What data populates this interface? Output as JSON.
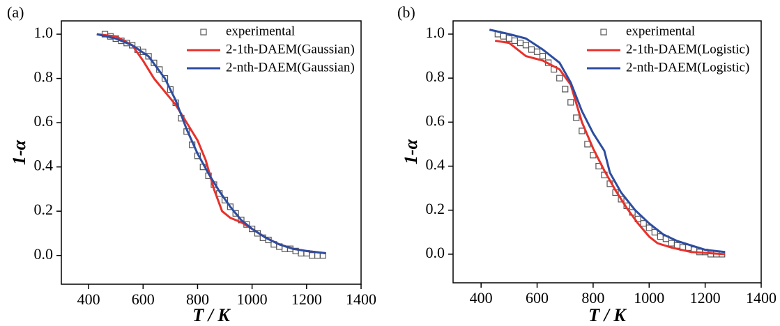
{
  "chart_data": [
    {
      "type": "line",
      "panel_label": "(a)",
      "x_label": "T / K",
      "y_label": "1-α",
      "xlim": [
        300,
        1400
      ],
      "xticks": [
        400,
        600,
        800,
        1000,
        1200,
        1400
      ],
      "ylim": [
        -0.13,
        1.06
      ],
      "yticks": [
        {
          "value": 0,
          "label": "0.0"
        },
        0.2,
        0.4,
        0.6,
        0.8,
        {
          "value": 1,
          "label": "1.0"
        }
      ],
      "legend": "upper right",
      "series": [
        {
          "name": "experimental",
          "color": "#555555",
          "style": "markers",
          "x": [
            460,
            480,
            500,
            520,
            540,
            560,
            580,
            600,
            620,
            640,
            660,
            680,
            700,
            720,
            740,
            760,
            780,
            800,
            820,
            840,
            860,
            880,
            900,
            920,
            940,
            960,
            980,
            1000,
            1020,
            1040,
            1060,
            1080,
            1100,
            1120,
            1140,
            1160,
            1180,
            1200,
            1220,
            1240,
            1260
          ],
          "values": [
            1.0,
            0.99,
            0.98,
            0.97,
            0.96,
            0.95,
            0.93,
            0.92,
            0.9,
            0.87,
            0.84,
            0.8,
            0.75,
            0.69,
            0.62,
            0.56,
            0.5,
            0.45,
            0.4,
            0.36,
            0.32,
            0.28,
            0.25,
            0.22,
            0.19,
            0.16,
            0.14,
            0.12,
            0.1,
            0.08,
            0.07,
            0.05,
            0.04,
            0.03,
            0.03,
            0.02,
            0.01,
            0.01,
            0.0,
            0.0,
            0.0
          ]
        },
        {
          "name": "2-1th-DAEM(Gaussian)",
          "color": "#e8312a",
          "style": "line",
          "x": [
            430,
            500,
            560,
            600,
            640,
            680,
            720,
            760,
            800,
            830,
            860,
            890,
            920,
            960,
            1000,
            1050,
            1100,
            1150,
            1200,
            1270
          ],
          "values": [
            1.0,
            0.99,
            0.95,
            0.88,
            0.8,
            0.74,
            0.68,
            0.6,
            0.52,
            0.43,
            0.3,
            0.2,
            0.17,
            0.15,
            0.12,
            0.08,
            0.05,
            0.03,
            0.02,
            0.01
          ]
        },
        {
          "name": "2-nth-DAEM(Gaussian)",
          "color": "#2d4da0",
          "style": "line",
          "x": [
            430,
            500,
            560,
            620,
            680,
            720,
            760,
            800,
            840,
            880,
            920,
            960,
            1000,
            1050,
            1100,
            1150,
            1200,
            1270
          ],
          "values": [
            1.0,
            0.98,
            0.95,
            0.9,
            0.8,
            0.7,
            0.57,
            0.46,
            0.37,
            0.29,
            0.22,
            0.16,
            0.12,
            0.08,
            0.05,
            0.03,
            0.02,
            0.01
          ]
        }
      ]
    },
    {
      "type": "line",
      "panel_label": "(b)",
      "x_label": "T / K",
      "y_label": "1-α",
      "xlim": [
        300,
        1400
      ],
      "xticks": [
        400,
        600,
        800,
        1000,
        1200,
        1400
      ],
      "ylim": [
        -0.13,
        1.06
      ],
      "yticks": [
        {
          "value": 0,
          "label": "0.0"
        },
        0.2,
        0.4,
        0.6,
        0.8,
        {
          "value": 1,
          "label": "1.0"
        }
      ],
      "legend": "upper right",
      "series": [
        {
          "name": "experimental",
          "color": "#555555",
          "style": "markers",
          "x": [
            460,
            480,
            500,
            520,
            540,
            560,
            580,
            600,
            620,
            640,
            660,
            680,
            700,
            720,
            740,
            760,
            780,
            800,
            820,
            840,
            860,
            880,
            900,
            920,
            940,
            960,
            980,
            1000,
            1020,
            1040,
            1060,
            1080,
            1100,
            1120,
            1140,
            1160,
            1180,
            1200,
            1220,
            1240,
            1260
          ],
          "values": [
            1.0,
            0.99,
            0.98,
            0.97,
            0.96,
            0.95,
            0.93,
            0.92,
            0.9,
            0.87,
            0.84,
            0.8,
            0.75,
            0.69,
            0.62,
            0.56,
            0.5,
            0.45,
            0.4,
            0.36,
            0.32,
            0.28,
            0.25,
            0.22,
            0.19,
            0.16,
            0.14,
            0.12,
            0.1,
            0.08,
            0.07,
            0.05,
            0.04,
            0.03,
            0.03,
            0.02,
            0.01,
            0.01,
            0.0,
            0.0,
            0.0
          ]
        },
        {
          "name": "2-1th-DAEM(Logistic)",
          "color": "#e8312a",
          "style": "line",
          "x": [
            450,
            500,
            560,
            620,
            680,
            720,
            760,
            800,
            840,
            880,
            920,
            960,
            1000,
            1030,
            1080,
            1150,
            1270
          ],
          "values": [
            0.97,
            0.96,
            0.9,
            0.88,
            0.84,
            0.77,
            0.6,
            0.48,
            0.38,
            0.29,
            0.21,
            0.14,
            0.08,
            0.05,
            0.03,
            0.01,
            0.0
          ]
        },
        {
          "name": "2-nth-DAEM(Logistic)",
          "color": "#2d4da0",
          "style": "line",
          "x": [
            430,
            500,
            560,
            620,
            680,
            720,
            760,
            800,
            840,
            860,
            900,
            950,
            1000,
            1050,
            1100,
            1150,
            1200,
            1270
          ],
          "values": [
            1.02,
            1.0,
            0.98,
            0.93,
            0.87,
            0.78,
            0.65,
            0.55,
            0.47,
            0.37,
            0.28,
            0.2,
            0.14,
            0.09,
            0.06,
            0.04,
            0.02,
            0.01
          ]
        }
      ]
    }
  ]
}
